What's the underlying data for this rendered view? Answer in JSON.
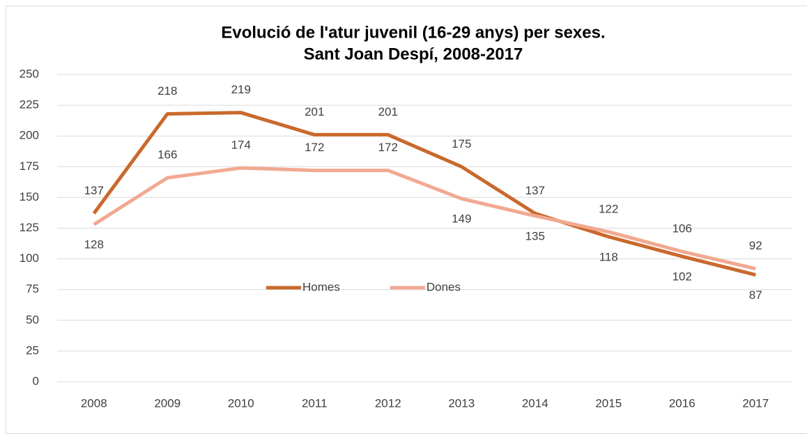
{
  "chart_data": {
    "type": "line",
    "title": "Evolució de l'atur juvenil (16-29 anys) per sexes.",
    "subtitle": "Sant Joan Despí, 2008-2017",
    "categories": [
      "2008",
      "2009",
      "2010",
      "2011",
      "2012",
      "2013",
      "2014",
      "2015",
      "2016",
      "2017"
    ],
    "series": [
      {
        "name": "Homes",
        "color": "#c9692c",
        "values": [
          137,
          218,
          219,
          201,
          201,
          175,
          137,
          118,
          102,
          87
        ]
      },
      {
        "name": "Dones",
        "color": "#f1a991",
        "values": [
          128,
          166,
          174,
          172,
          172,
          149,
          135,
          122,
          106,
          92
        ]
      }
    ],
    "ylim": [
      0,
      250
    ],
    "yticks": [
      0,
      25,
      50,
      75,
      100,
      125,
      150,
      175,
      200,
      225,
      250
    ],
    "grid": true,
    "legend": "center"
  }
}
